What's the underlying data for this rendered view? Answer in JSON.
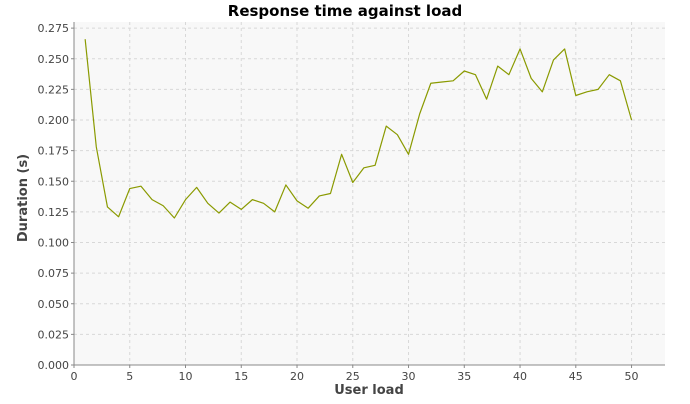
{
  "chart_data": {
    "type": "line",
    "title": "Response time against load",
    "xlabel": "User load",
    "ylabel": "Duration (s)",
    "xlim": [
      0,
      53
    ],
    "ylim": [
      0,
      0.28
    ],
    "x_ticks": [
      0,
      5,
      10,
      15,
      20,
      25,
      30,
      35,
      40,
      45,
      50
    ],
    "y_ticks": [
      0.0,
      0.025,
      0.05,
      0.075,
      0.1,
      0.125,
      0.15,
      0.175,
      0.2,
      0.225,
      0.25,
      0.275
    ],
    "x_tick_labels": [
      "0",
      "5",
      "10",
      "15",
      "20",
      "25",
      "30",
      "35",
      "40",
      "45",
      "50"
    ],
    "y_tick_labels": [
      "0.000",
      "0.025",
      "0.050",
      "0.075",
      "0.100",
      "0.125",
      "0.150",
      "0.175",
      "0.200",
      "0.225",
      "0.250",
      "0.275"
    ],
    "grid": true,
    "legend": "none",
    "series": [
      {
        "color": "#8a9a00",
        "x": [
          1,
          2,
          3,
          4,
          5,
          6,
          7,
          8,
          9,
          10,
          11,
          12,
          13,
          14,
          15,
          16,
          17,
          18,
          19,
          20,
          21,
          22,
          23,
          24,
          25,
          26,
          27,
          28,
          29,
          30,
          31,
          32,
          33,
          34,
          35,
          36,
          37,
          38,
          39,
          40,
          41,
          42,
          43,
          44,
          45,
          46,
          47,
          48,
          49,
          50
        ],
        "y": [
          0.266,
          0.178,
          0.129,
          0.121,
          0.144,
          0.146,
          0.135,
          0.13,
          0.12,
          0.135,
          0.145,
          0.132,
          0.124,
          0.133,
          0.127,
          0.135,
          0.132,
          0.125,
          0.147,
          0.134,
          0.128,
          0.138,
          0.14,
          0.172,
          0.149,
          0.161,
          0.163,
          0.195,
          0.188,
          0.172,
          0.205,
          0.23,
          0.231,
          0.232,
          0.24,
          0.237,
          0.217,
          0.244,
          0.237,
          0.258,
          0.234,
          0.223,
          0.249,
          0.258,
          0.22,
          0.223,
          0.225,
          0.237,
          0.232,
          0.2
        ]
      }
    ]
  },
  "colors": {
    "plot_background": "#f8f8f8",
    "grid": "#d8d8d8",
    "axis": "#888888",
    "series": "#8a9a00"
  }
}
